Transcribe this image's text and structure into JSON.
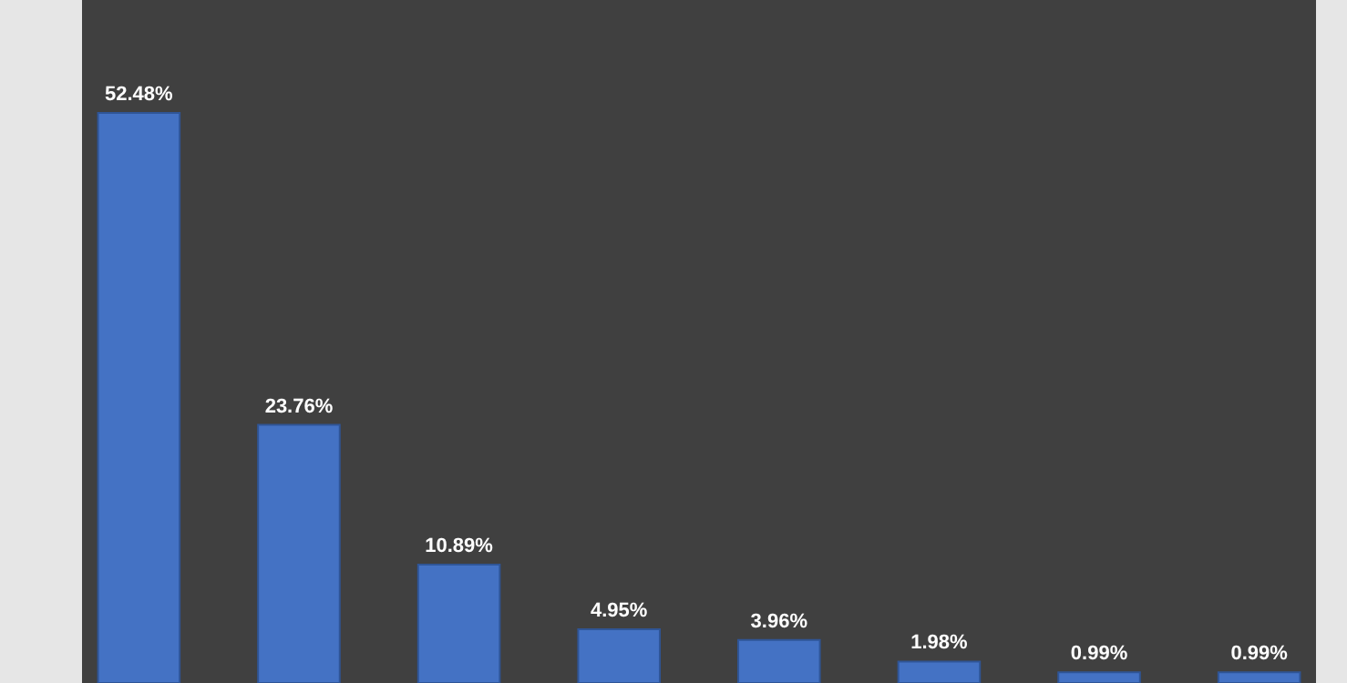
{
  "chart_data": {
    "type": "bar",
    "categories": [
      null,
      null,
      null,
      null,
      null,
      null,
      null,
      null
    ],
    "values": [
      52.48,
      23.76,
      10.89,
      4.95,
      3.96,
      1.98,
      0.99,
      0.99
    ],
    "value_labels": [
      "52.48%",
      "23.76%",
      "10.89%",
      "4.95%",
      "3.96%",
      "1.98%",
      "0.99%",
      "0.99%"
    ],
    "color": "#4472c4"
  }
}
